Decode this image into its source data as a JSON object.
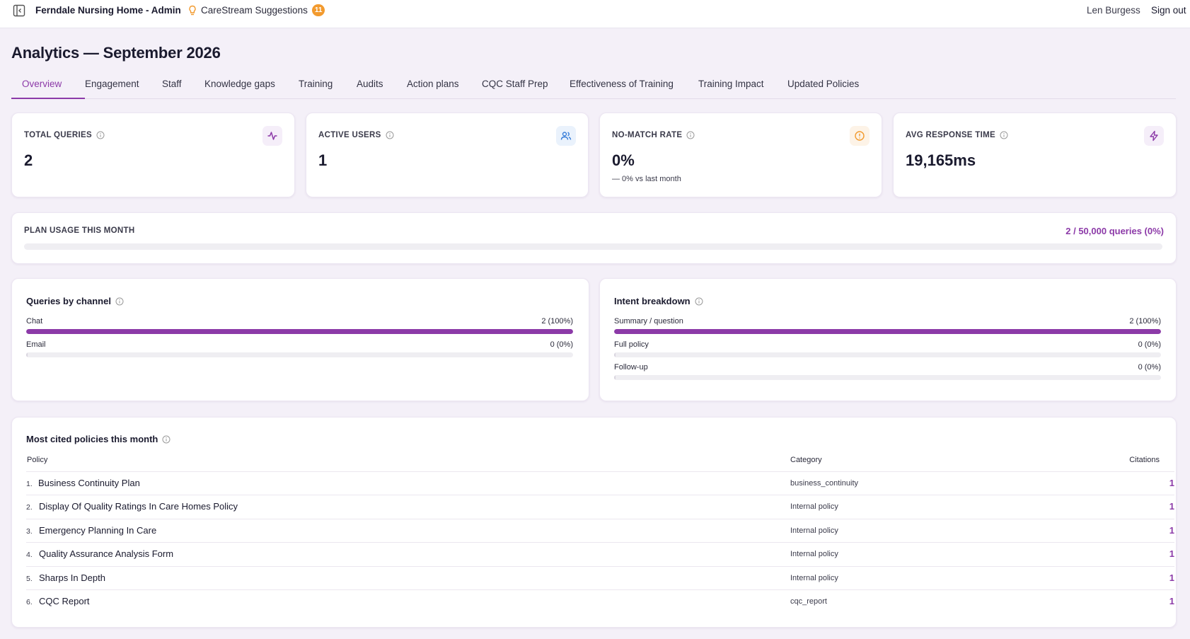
{
  "header": {
    "app_title": "Ferndale Nursing Home - Admin",
    "suggestions_label": "CareStream Suggestions",
    "suggestions_count": "11",
    "user_name": "Len Burgess",
    "sign_out": "Sign out"
  },
  "page": {
    "title": "Analytics — September 2026"
  },
  "tabs": [
    {
      "label": "Overview",
      "active": true
    },
    {
      "label": "Engagement"
    },
    {
      "label": "Staff"
    },
    {
      "label": "Knowledge gaps"
    },
    {
      "label": "Training"
    },
    {
      "label": "Audits"
    },
    {
      "label": "Action plans"
    },
    {
      "label": "CQC Staff Prep"
    },
    {
      "label": "Effectiveness of Training"
    },
    {
      "label": "Training Impact"
    },
    {
      "label": "Updated Policies"
    }
  ],
  "stats": [
    {
      "label": "TOTAL QUERIES",
      "value": "2",
      "icon": "activity-icon",
      "icon_color": "#8c3aa8",
      "icon_bg": "#f5eef9"
    },
    {
      "label": "ACTIVE USERS",
      "value": "1",
      "icon": "users-icon",
      "icon_color": "#3b7fd9",
      "icon_bg": "#eaf2fc"
    },
    {
      "label": "NO-MATCH RATE",
      "value": "0%",
      "sub": "— 0% vs last month",
      "icon": "alert-circle-icon",
      "icon_color": "#f29a2e",
      "icon_bg": "#fdf3e7"
    },
    {
      "label": "AVG RESPONSE TIME",
      "value": "19,165ms",
      "icon": "lightning-icon",
      "icon_color": "#8c3aa8",
      "icon_bg": "#f5eef9"
    }
  ],
  "plan_usage": {
    "label": "PLAN USAGE THIS MONTH",
    "value_text": "2 / 50,000 queries (0%)",
    "fraction": 4e-05
  },
  "channels": {
    "title": "Queries by channel",
    "rows": [
      {
        "label": "Chat",
        "value": "2 (100%)",
        "fraction": 1.0
      },
      {
        "label": "Email",
        "value": "0 (0%)",
        "fraction": 0.0
      }
    ]
  },
  "intents": {
    "title": "Intent breakdown",
    "rows": [
      {
        "label": "Summary / question",
        "value": "2 (100%)",
        "fraction": 1.0
      },
      {
        "label": "Full policy",
        "value": "0 (0%)",
        "fraction": 0.0
      },
      {
        "label": "Follow-up",
        "value": "0 (0%)",
        "fraction": 0.0
      }
    ]
  },
  "cited": {
    "title": "Most cited policies this month",
    "columns": {
      "policy": "Policy",
      "category": "Category",
      "citations": "Citations"
    },
    "rows": [
      {
        "num": "1.",
        "name": "Business Continuity Plan",
        "category": "business_continuity",
        "citations": "1"
      },
      {
        "num": "2.",
        "name": "Display Of Quality Ratings In Care Homes Policy",
        "category": "Internal policy",
        "citations": "1"
      },
      {
        "num": "3.",
        "name": "Emergency Planning In Care",
        "category": "Internal policy",
        "citations": "1"
      },
      {
        "num": "4.",
        "name": "Quality Assurance Analysis Form",
        "category": "Internal policy",
        "citations": "1"
      },
      {
        "num": "5.",
        "name": "Sharps In Depth",
        "category": "Internal policy",
        "citations": "1"
      },
      {
        "num": "6.",
        "name": "CQC Report",
        "category": "cqc_report",
        "citations": "1"
      }
    ]
  },
  "colors": {
    "accent": "#8c3aa8",
    "badge": "#f29a2e",
    "page_bg": "#f4f0f8"
  }
}
